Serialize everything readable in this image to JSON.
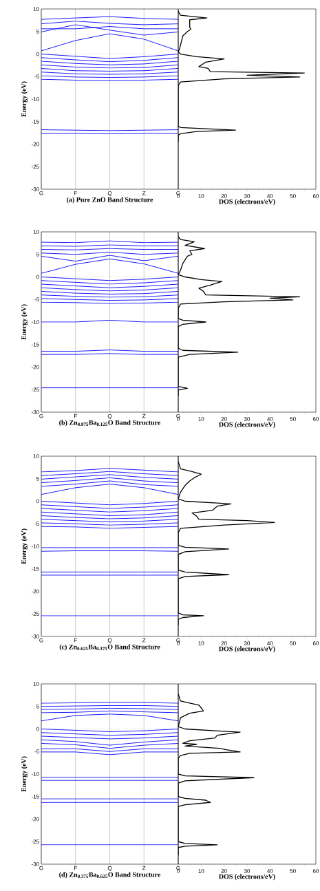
{
  "chart_data": [
    {
      "type": "line",
      "xlabel": "(a) Pure ZnO Band Structure",
      "ylabel": "Energy (eV)",
      "categories": [
        "G",
        "F",
        "Q",
        "Z",
        "G"
      ],
      "color": "#1a1aff",
      "ylim": [
        -30,
        10
      ],
      "yticks": [
        -30,
        -25,
        -20,
        -15,
        -10,
        -5,
        0,
        5,
        10
      ],
      "grid": "x",
      "ref_lines": [
        {
          "axis": "y",
          "value": 0,
          "line_style": "dotted",
          "color": "#555555"
        }
      ],
      "series": [
        {
          "values": [
            0.7,
            3.0,
            4.5,
            3.3,
            0.7
          ]
        },
        {
          "values": [
            4.9,
            6.5,
            5.3,
            4.2,
            4.9
          ]
        },
        {
          "values": [
            5.6,
            5.6,
            6.1,
            5.6,
            5.6
          ]
        },
        {
          "values": [
            6.7,
            7.3,
            6.8,
            6.5,
            6.7
          ]
        },
        {
          "values": [
            7.7,
            8.0,
            8.3,
            7.9,
            7.7
          ]
        },
        {
          "values": [
            0,
            -0.5,
            -1.0,
            -0.6,
            0
          ]
        },
        {
          "values": [
            -0.8,
            -1.3,
            -1.7,
            -1.4,
            -0.8
          ]
        },
        {
          "values": [
            -1.6,
            -2.1,
            -2.4,
            -2.2,
            -1.6
          ]
        },
        {
          "values": [
            -2.4,
            -2.9,
            -3.1,
            -3.0,
            -2.4
          ]
        },
        {
          "values": [
            -3.2,
            -3.7,
            -3.8,
            -3.7,
            -3.2
          ]
        },
        {
          "values": [
            -4.0,
            -4.4,
            -4.5,
            -4.4,
            -4.0
          ]
        },
        {
          "values": [
            -4.8,
            -5.1,
            -5.2,
            -5.1,
            -4.8
          ]
        },
        {
          "values": [
            -5.6,
            -5.8,
            -5.9,
            -5.8,
            -5.6
          ]
        },
        {
          "values": [
            -16.8,
            -16.9,
            -17.0,
            -16.9,
            -16.8
          ]
        },
        {
          "values": [
            -17.6,
            -17.6,
            -17.7,
            -17.6,
            -17.6
          ]
        }
      ]
    },
    {
      "type": "line",
      "xlabel": "DOS (electrons/eV)",
      "color": "#000000",
      "xlim": [
        0,
        60
      ],
      "xticks": [
        0,
        10,
        20,
        30,
        40,
        50,
        60
      ],
      "ylim": [
        -30,
        10
      ],
      "tick_labels": "x",
      "series": [
        {
          "x": [
            0,
            1,
            12.5,
            5,
            5,
            5.5,
            4,
            2,
            1,
            0.5,
            0,
            1,
            8,
            20,
            12,
            9,
            13,
            14,
            55,
            30,
            53,
            20,
            1,
            0,
            0,
            1,
            25,
            8,
            1,
            0,
            0
          ],
          "values": [
            9.5,
            8.6,
            8.0,
            7.6,
            6.0,
            5.5,
            5.0,
            4.0,
            2.0,
            1.0,
            0.5,
            0,
            -0.6,
            -1.1,
            -1.8,
            -2.8,
            -3.2,
            -3.9,
            -4.2,
            -4.7,
            -5.1,
            -5.5,
            -6.2,
            -7,
            -16,
            -16.3,
            -16.9,
            -17.2,
            -17.7,
            -18,
            -19.5
          ]
        }
      ]
    },
    {
      "type": "line",
      "xlabel": "(b) Zn$_{0.875}$Ba$_{0.125}$O Band Structure",
      "ylabel": "Energy (eV)",
      "categories": [
        "G",
        "F",
        "Q",
        "Z",
        "G"
      ],
      "color": "#1a1aff",
      "ylim": [
        -30,
        10
      ],
      "yticks": [
        -30,
        -25,
        -20,
        -15,
        -10,
        -5,
        0,
        5,
        10
      ],
      "grid": "x",
      "ref_lines": [
        {
          "axis": "y",
          "value": 0,
          "line_style": "dotted",
          "color": "#555555"
        }
      ],
      "series": [
        {
          "values": [
            0.8,
            2.8,
            4.0,
            2.9,
            0.8
          ]
        },
        {
          "values": [
            4.6,
            3.5,
            4.8,
            3.6,
            4.6
          ]
        },
        {
          "values": [
            5.3,
            5.0,
            5.5,
            5.0,
            5.3
          ]
        },
        {
          "values": [
            6.1,
            6.0,
            6.3,
            6.1,
            6.1
          ]
        },
        {
          "values": [
            6.9,
            6.8,
            7.1,
            6.9,
            6.9
          ]
        },
        {
          "values": [
            7.7,
            7.6,
            8.0,
            7.6,
            7.7
          ]
        },
        {
          "values": [
            0,
            -0.4,
            -0.8,
            -0.5,
            0
          ]
        },
        {
          "values": [
            -0.8,
            -1.2,
            -1.6,
            -1.3,
            -0.8
          ]
        },
        {
          "values": [
            -1.6,
            -2.0,
            -2.4,
            -2.1,
            -1.6
          ]
        },
        {
          "values": [
            -2.4,
            -2.8,
            -3.1,
            -2.9,
            -2.4
          ]
        },
        {
          "values": [
            -3.2,
            -3.6,
            -3.8,
            -3.7,
            -3.2
          ]
        },
        {
          "values": [
            -4.0,
            -4.3,
            -4.5,
            -4.4,
            -4.0
          ]
        },
        {
          "values": [
            -4.8,
            -5.0,
            -5.2,
            -5.1,
            -4.8
          ]
        },
        {
          "values": [
            -5.6,
            -5.7,
            -5.9,
            -5.8,
            -5.6
          ]
        },
        {
          "values": [
            -10.0,
            -10.0,
            -9.6,
            -10.0,
            -10.0
          ]
        },
        {
          "values": [
            -16.5,
            -16.5,
            -16.2,
            -16.5,
            -16.5
          ]
        },
        {
          "values": [
            -17.2,
            -17.2,
            -17.0,
            -17.2,
            -17.2
          ]
        },
        {
          "values": [
            -24.6,
            -24.6,
            -24.6,
            -24.6,
            -24.6
          ]
        }
      ]
    },
    {
      "type": "line",
      "xlabel": "DOS (electrons/eV)",
      "color": "#000000",
      "xlim": [
        0,
        60
      ],
      "xticks": [
        0,
        10,
        20,
        30,
        40,
        50,
        60
      ],
      "ylim": [
        -30,
        10
      ],
      "tick_labels": "x",
      "series": [
        {
          "x": [
            0,
            1,
            7,
            3,
            11.5,
            5,
            6,
            4,
            2,
            1,
            0,
            3,
            10,
            19,
            14,
            9,
            11,
            12,
            53,
            40,
            50,
            20,
            1,
            0,
            0,
            2,
            12,
            2,
            0,
            0,
            2,
            26,
            5,
            0,
            0,
            4,
            0,
            0
          ],
          "values": [
            9,
            8.3,
            7.8,
            7.0,
            6.3,
            5.8,
            5.0,
            4.6,
            3,
            1.5,
            0.5,
            0,
            -0.6,
            -1.0,
            -1.8,
            -2.5,
            -3.2,
            -4.0,
            -4.4,
            -4.7,
            -5.1,
            -5.5,
            -6.0,
            -7,
            -9.2,
            -9.6,
            -10.0,
            -10.5,
            -11,
            -15.8,
            -16.3,
            -16.7,
            -17.2,
            -17.8,
            -24.3,
            -24.7,
            -25.1,
            -26.5
          ]
        }
      ]
    },
    {
      "type": "line",
      "xlabel": "(c)  Zn$_{0.625}$Ba$_{0.375}$O Band Structure",
      "ylabel": "Energy (eV)",
      "categories": [
        "G",
        "F",
        "Q",
        "Z",
        "G"
      ],
      "color": "#1a1aff",
      "ylim": [
        -30,
        10
      ],
      "yticks": [
        -30,
        -25,
        -20,
        -15,
        -10,
        -5,
        0,
        5,
        10
      ],
      "grid": "x",
      "ref_lines": [
        {
          "axis": "y",
          "value": 0,
          "line_style": "dotted",
          "color": "#555555"
        }
      ],
      "series": [
        {
          "values": [
            1.5,
            3.0,
            3.8,
            3.0,
            1.5
          ]
        },
        {
          "values": [
            3.3,
            3.8,
            4.5,
            3.7,
            3.3
          ]
        },
        {
          "values": [
            4.1,
            4.6,
            5.2,
            4.5,
            4.1
          ]
        },
        {
          "values": [
            4.9,
            5.4,
            5.9,
            5.3,
            4.9
          ]
        },
        {
          "values": [
            5.7,
            6.1,
            6.6,
            6.1,
            5.7
          ]
        },
        {
          "values": [
            6.5,
            6.8,
            7.3,
            6.9,
            6.5
          ]
        },
        {
          "values": [
            0,
            -0.4,
            -0.8,
            -0.5,
            0
          ]
        },
        {
          "values": [
            -0.8,
            -1.2,
            -1.6,
            -1.3,
            -0.8
          ]
        },
        {
          "values": [
            -1.6,
            -2.0,
            -2.4,
            -2.1,
            -1.6
          ]
        },
        {
          "values": [
            -2.4,
            -2.8,
            -3.2,
            -3.0,
            -2.4
          ]
        },
        {
          "values": [
            -3.2,
            -3.6,
            -3.9,
            -3.7,
            -3.2
          ]
        },
        {
          "values": [
            -4.0,
            -4.3,
            -4.6,
            -4.4,
            -4.0
          ]
        },
        {
          "values": [
            -4.8,
            -5.0,
            -5.3,
            -5.1,
            -4.8
          ]
        },
        {
          "values": [
            -5.6,
            -5.7,
            -6.0,
            -5.8,
            -5.6
          ]
        },
        {
          "values": [
            -10.3,
            -10.3,
            -10.3,
            -10.3,
            -10.3
          ]
        },
        {
          "values": [
            -11.1,
            -11.0,
            -11.0,
            -11.0,
            -11.1
          ]
        },
        {
          "values": [
            -15.7,
            -15.7,
            -15.7,
            -15.7,
            -15.7
          ]
        },
        {
          "values": [
            -16.4,
            -16.4,
            -16.4,
            -16.4,
            -16.4
          ]
        },
        {
          "values": [
            -25.4,
            -25.4,
            -25.4,
            -25.4,
            -25.4
          ]
        }
      ]
    },
    {
      "type": "line",
      "xlabel": "DOS (electrons/eV)",
      "color": "#000000",
      "xlim": [
        0,
        60
      ],
      "xticks": [
        0,
        10,
        20,
        30,
        40,
        50,
        60
      ],
      "ylim": [
        -30,
        10
      ],
      "tick_labels": "x",
      "series": [
        {
          "x": [
            0,
            1,
            6,
            10,
            7,
            5,
            3,
            1,
            0,
            3,
            17,
            23,
            17,
            15,
            6,
            8,
            9,
            30,
            42,
            20,
            1,
            0,
            0,
            3,
            22,
            3,
            0,
            0,
            3,
            22,
            3,
            0,
            0,
            2,
            11,
            2,
            0,
            0
          ],
          "values": [
            8.8,
            7.2,
            6.6,
            6.0,
            5.2,
            4.5,
            3.5,
            2.0,
            0.5,
            0,
            -0.4,
            -0.6,
            -1.1,
            -2.0,
            -2.6,
            -3.3,
            -4.0,
            -4.3,
            -4.7,
            -5.3,
            -6.0,
            -7,
            -9.8,
            -10.2,
            -10.6,
            -11.2,
            -11.8,
            -15.3,
            -15.7,
            -16.3,
            -16.7,
            -17.2,
            -24.8,
            -25.2,
            -25.4,
            -25.8,
            -26.2,
            -27.5
          ]
        }
      ]
    },
    {
      "type": "line",
      "xlabel": "(d)  Zn$_{0.375}$Ba$_{0.625}$O Band Structure",
      "ylabel": "Energy (eV)",
      "categories": [
        "G",
        "F",
        "Q",
        "Z",
        "G"
      ],
      "color": "#1a1aff",
      "ylim": [
        -30,
        10
      ],
      "yticks": [
        -30,
        -25,
        -20,
        -15,
        -10,
        -5,
        0,
        5,
        10
      ],
      "grid": "x",
      "ref_lines": [
        {
          "axis": "y",
          "value": 0,
          "line_style": "dotted",
          "color": "#555555"
        }
      ],
      "series": [
        {
          "values": [
            1.8,
            3.0,
            3.3,
            3.0,
            1.8
          ]
        },
        {
          "values": [
            3.6,
            3.7,
            4.0,
            3.8,
            3.6
          ]
        },
        {
          "values": [
            4.3,
            4.4,
            4.6,
            4.5,
            4.3
          ]
        },
        {
          "values": [
            5.0,
            5.1,
            5.2,
            5.2,
            5.0
          ]
        },
        {
          "values": [
            5.7,
            5.8,
            5.9,
            5.9,
            5.7
          ]
        },
        {
          "values": [
            0,
            -0.3,
            -0.6,
            -0.4,
            0
          ]
        },
        {
          "values": [
            -0.8,
            -1.1,
            -1.4,
            -1.2,
            -0.8
          ]
        },
        {
          "values": [
            -1.6,
            -1.9,
            -2.2,
            -2.0,
            -1.6
          ]
        },
        {
          "values": [
            -2.4,
            -2.8,
            -3.6,
            -2.9,
            -2.4
          ]
        },
        {
          "values": [
            -3.2,
            -3.5,
            -4.3,
            -3.6,
            -3.2
          ]
        },
        {
          "values": [
            -4.4,
            -4.4,
            -5.0,
            -4.4,
            -4.4
          ]
        },
        {
          "values": [
            -5.1,
            -5.1,
            -5.7,
            -5.1,
            -5.1
          ]
        },
        {
          "values": [
            -10.7,
            -10.7,
            -10.7,
            -10.7,
            -10.7
          ]
        },
        {
          "values": [
            -11.4,
            -11.4,
            -11.4,
            -11.4,
            -11.4
          ]
        },
        {
          "values": [
            -15.5,
            -15.5,
            -15.5,
            -15.5,
            -15.5
          ]
        },
        {
          "values": [
            -16.3,
            -16.3,
            -16.3,
            -16.3,
            -16.3
          ]
        },
        {
          "values": [
            -25.7,
            -25.7,
            -25.7,
            -25.7,
            -25.7
          ]
        }
      ]
    },
    {
      "type": "line",
      "xlabel": "DOS (electrons/eV)",
      "color": "#000000",
      "xlim": [
        0,
        60
      ],
      "xticks": [
        0,
        10,
        20,
        30,
        40,
        50,
        60
      ],
      "ylim": [
        -30,
        10
      ],
      "tick_labels": "x",
      "series": [
        {
          "x": [
            0,
            1,
            9,
            10,
            11,
            5,
            1,
            0,
            3,
            20,
            27,
            17,
            16,
            5,
            2,
            8,
            3,
            18,
            21,
            27,
            5,
            1,
            0,
            0,
            3,
            33,
            3,
            0,
            0,
            3,
            12,
            14,
            3,
            0,
            0,
            3,
            17,
            3,
            0,
            0
          ],
          "values": [
            7.8,
            6.2,
            5.3,
            4.7,
            4.0,
            3.5,
            2.5,
            0.5,
            0,
            -0.5,
            -0.7,
            -1.4,
            -2.0,
            -2.6,
            -3.2,
            -3.4,
            -3.8,
            -4.3,
            -4.6,
            -5.1,
            -5.4,
            -5.9,
            -6.5,
            -10.0,
            -10.4,
            -10.8,
            -11.5,
            -12,
            -15.0,
            -15.4,
            -15.8,
            -16.3,
            -16.8,
            -17.2,
            -25,
            -25.4,
            -25.7,
            -26,
            -26.3,
            -28
          ]
        }
      ]
    }
  ]
}
